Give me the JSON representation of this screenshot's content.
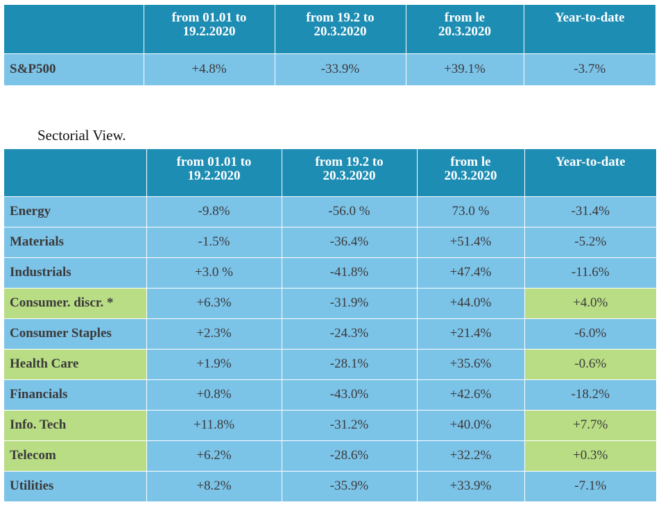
{
  "table1": {
    "headers": [
      "",
      "from 01.01 to\n19.2.2020",
      "from 19.2 to\n20.3.2020",
      "from le\n20.3.2020",
      "Year-to-date"
    ],
    "header_lines": [
      [],
      [
        "from 01.01 to",
        "19.2.2020"
      ],
      [
        "from 19.2 to",
        "20.3.2020"
      ],
      [
        "from le",
        "20.3.2020"
      ],
      [
        "Year-to-date"
      ]
    ],
    "rows": [
      {
        "label": "S&P500",
        "values": [
          "+4.8%",
          "-33.9%",
          "+39.1%",
          "-3.7%"
        ]
      }
    ]
  },
  "subtitle": "Sectorial View.",
  "table2": {
    "header_lines": [
      [],
      [
        "from 01.01 to",
        "19.2.2020"
      ],
      [
        "from 19.2 to",
        "20.3.2020"
      ],
      [
        "from le",
        "20.3.2020"
      ],
      [
        "Year-to-date"
      ]
    ],
    "rows": [
      {
        "label": "Energy",
        "values": [
          "-9.8%",
          "-56.0 %",
          "73.0 %",
          "-31.4%"
        ]
      },
      {
        "label": "Materials",
        "values": [
          "-1.5%",
          "-36.4%",
          "+51.4%",
          "-5.2%"
        ]
      },
      {
        "label": "Industrials",
        "values": [
          "+3.0 %",
          "-41.8%",
          "+47.4%",
          "-11.6%"
        ]
      },
      {
        "label": "Consumer. discr. *",
        "values": [
          "+6.3%",
          "-31.9%",
          "+44.0%",
          "+4.0%"
        ]
      },
      {
        "label": "Consumer Staples",
        "values": [
          "+2.3%",
          "-24.3%",
          "+21.4%",
          "-6.0%"
        ]
      },
      {
        "label": "Health Care",
        "values": [
          "+1.9%",
          "-28.1%",
          "+35.6%",
          "-0.6%"
        ]
      },
      {
        "label": "Financials",
        "values": [
          "+0.8%",
          "-43.0%",
          "+42.6%",
          "-18.2%"
        ]
      },
      {
        "label": "Info. Tech",
        "values": [
          "+11.8%",
          "-31.2%",
          "+40.0%",
          "+7.7%"
        ]
      },
      {
        "label": "Telecom",
        "values": [
          "+6.2%",
          "-28.6%",
          "+32.2%",
          "+0.3%"
        ]
      },
      {
        "label": "Utilities",
        "values": [
          "+8.2%",
          "-35.9%",
          "+33.9%",
          "-7.1%"
        ]
      }
    ]
  },
  "colors": {
    "header_bg": "#1d8db3",
    "row_bg": "#7cc3e8",
    "highlight_bg": "#b9dd85"
  }
}
